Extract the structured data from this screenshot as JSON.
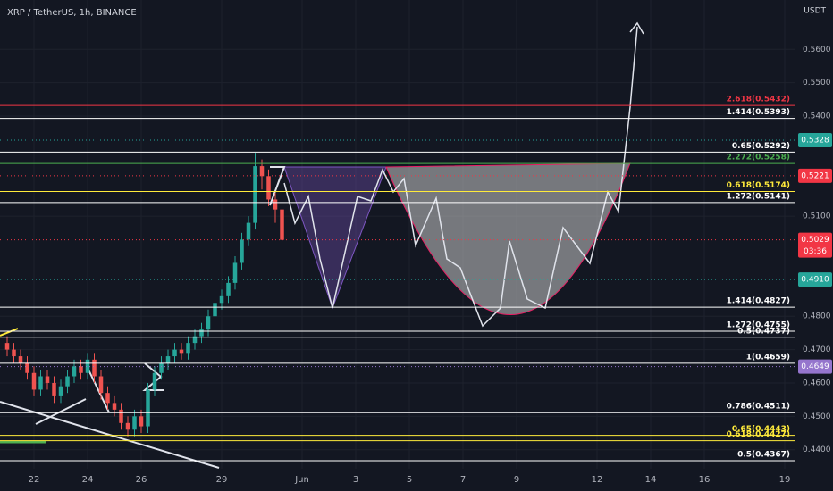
{
  "chart_data": {
    "type": "candlestick",
    "title": "XRP / TetherUS, 1h, BINANCE",
    "y_axis_label": "USDT",
    "up_color": "#26a69a",
    "down_color": "#ef5350",
    "ylim": [
      0.4343,
      0.5748
    ],
    "xlim": [
      20.733,
      50.4
    ],
    "yticks": [
      {
        "value": 0.56,
        "label": "0.5600"
      },
      {
        "value": 0.55,
        "label": "0.5500"
      },
      {
        "value": 0.54,
        "label": "0.5400"
      },
      {
        "value": 0.51,
        "label": "0.5100"
      },
      {
        "value": 0.48,
        "label": "0.4800"
      },
      {
        "value": 0.47,
        "label": "0.4700"
      },
      {
        "value": 0.46,
        "label": "0.4600"
      },
      {
        "value": 0.45,
        "label": "0.4500"
      },
      {
        "value": 0.44,
        "label": "0.4400"
      }
    ],
    "xticks": [
      22,
      24,
      26,
      29,
      {
        "value": 32,
        "label": "Jun"
      },
      {
        "value": 34,
        "label": "3"
      },
      {
        "value": 36,
        "label": "5"
      },
      {
        "value": 38,
        "label": "7"
      },
      {
        "value": 40,
        "label": "9"
      },
      {
        "value": 43,
        "label": "12"
      },
      {
        "value": 45,
        "label": "14"
      },
      {
        "value": 47,
        "label": "16"
      },
      {
        "value": 50,
        "label": "19"
      }
    ],
    "x": [
      21,
      21.25,
      21.5,
      21.75,
      22,
      22.25,
      22.5,
      22.75,
      23,
      23.25,
      23.5,
      23.75,
      24,
      24.25,
      24.5,
      24.75,
      25,
      25.25,
      25.5,
      25.75,
      26,
      26.25,
      26.5,
      26.75,
      27,
      27.25,
      27.5,
      27.75,
      28,
      28.25,
      28.5,
      28.75,
      29,
      29.25,
      29.5,
      29.75,
      30,
      30.25,
      30.5,
      30.75,
      31,
      31.25
    ],
    "open": [
      0.472,
      0.47,
      0.468,
      0.466,
      0.463,
      0.458,
      0.462,
      0.46,
      0.456,
      0.459,
      0.462,
      0.465,
      0.463,
      0.467,
      0.462,
      0.457,
      0.454,
      0.452,
      0.448,
      0.446,
      0.45,
      0.447,
      0.458,
      0.463,
      0.466,
      0.468,
      0.47,
      0.469,
      0.472,
      0.474,
      0.476,
      0.48,
      0.484,
      0.486,
      0.49,
      0.496,
      0.503,
      0.508,
      0.525,
      0.522,
      0.515,
      0.512
    ],
    "high": [
      0.474,
      0.472,
      0.47,
      0.468,
      0.465,
      0.464,
      0.464,
      0.462,
      0.461,
      0.464,
      0.467,
      0.467,
      0.469,
      0.469,
      0.464,
      0.459,
      0.456,
      0.454,
      0.45,
      0.452,
      0.452,
      0.46,
      0.465,
      0.468,
      0.47,
      0.472,
      0.472,
      0.474,
      0.476,
      0.478,
      0.482,
      0.486,
      0.488,
      0.492,
      0.498,
      0.505,
      0.51,
      0.529,
      0.527,
      0.524,
      0.517,
      0.514
    ],
    "low": [
      0.468,
      0.466,
      0.464,
      0.461,
      0.456,
      0.456,
      0.458,
      0.454,
      0.454,
      0.457,
      0.46,
      0.461,
      0.461,
      0.46,
      0.455,
      0.452,
      0.45,
      0.446,
      0.444,
      0.444,
      0.445,
      0.445,
      0.456,
      0.461,
      0.464,
      0.466,
      0.467,
      0.467,
      0.47,
      0.472,
      0.474,
      0.478,
      0.482,
      0.484,
      0.488,
      0.494,
      0.501,
      0.506,
      0.518,
      0.513,
      0.508,
      0.5009
    ],
    "close": [
      0.47,
      0.468,
      0.466,
      0.463,
      0.458,
      0.462,
      0.46,
      0.456,
      0.459,
      0.462,
      0.465,
      0.463,
      0.467,
      0.462,
      0.457,
      0.454,
      0.452,
      0.448,
      0.446,
      0.45,
      0.447,
      0.458,
      0.463,
      0.466,
      0.468,
      0.47,
      0.469,
      0.472,
      0.474,
      0.476,
      0.48,
      0.484,
      0.486,
      0.49,
      0.496,
      0.503,
      0.508,
      0.525,
      0.522,
      0.515,
      0.512,
      0.5029
    ],
    "levels": [
      {
        "label": "2.618(0.5432)",
        "value": 0.5432,
        "color": "#f23645"
      },
      {
        "label": "1.414(0.5393)",
        "value": 0.5393,
        "color": "#ffffff"
      },
      {
        "label": "0.65(0.5292)",
        "value": 0.5292,
        "color": "#ffffff"
      },
      {
        "label": "2.272(0.5258)",
        "value": 0.5258,
        "color": "#4caf50"
      },
      {
        "label": "0.618(0.5174)",
        "value": 0.5174,
        "color": "#ffeb3b"
      },
      {
        "label": "1.272(0.5141)",
        "value": 0.5141,
        "color": "#ffffff"
      },
      {
        "label": "1.414(0.4827)",
        "value": 0.4827,
        "color": "#ffffff"
      },
      {
        "label": "1.272(0.4755)",
        "value": 0.4755,
        "color": "#ffffff"
      },
      {
        "label": "0.5(0.4737)",
        "value": 0.4737,
        "color": "#ffffff"
      },
      {
        "label": "1(0.4659)",
        "value": 0.4659,
        "color": "#ffffff"
      },
      {
        "label": "0.786(0.4511)",
        "value": 0.4511,
        "color": "#ffffff"
      },
      {
        "label": "0.65(0.4443)",
        "value": 0.4443,
        "color": "#ffeb3b"
      },
      {
        "label": "0.618(0.4427)",
        "value": 0.4427,
        "color": "#ffeb3b"
      },
      {
        "label": "0.5(0.4367)",
        "value": 0.4367,
        "color": "#ffffff"
      }
    ],
    "price_tags": [
      {
        "value": 0.5328,
        "label": "0.5328",
        "color": "#26a69a"
      },
      {
        "value": 0.5221,
        "label": "0.5221",
        "color": "#f23645"
      },
      {
        "value": 0.5029,
        "label": "0.5029",
        "color": "#f23645",
        "countdown": "03:36"
      },
      {
        "value": 0.491,
        "label": "0.4910",
        "color": "#26a69a"
      },
      {
        "value": 0.4649,
        "label": "0.4649",
        "color": "#9575cd"
      }
    ]
  }
}
